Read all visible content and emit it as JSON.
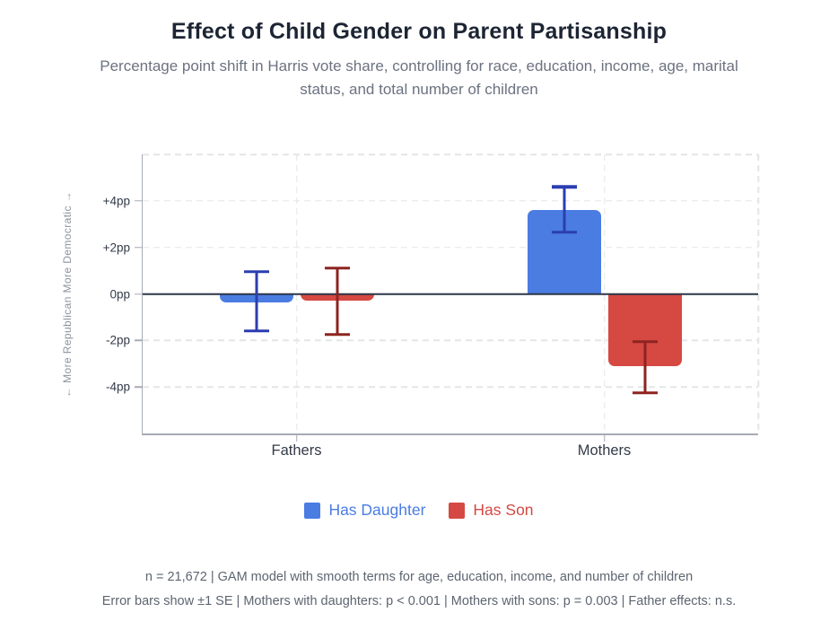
{
  "header": {
    "title": "Effect of Child Gender on Parent Partisanship",
    "subtitle_line1": "Percentage point shift in Harris vote share, controlling for race, education, income, age, marital",
    "subtitle_line2": "status, and total number of children"
  },
  "chart_data": {
    "type": "bar",
    "title": "Effect of Child Gender on Parent Partisanship",
    "categories": [
      "Fathers",
      "Mothers"
    ],
    "series": [
      {
        "name": "Has Daughter",
        "color": "#4a7ce2",
        "error_color": "#2b3eb0",
        "values": [
          -0.35,
          3.6
        ],
        "error_high": [
          0.95,
          4.6
        ],
        "error_low": [
          -1.6,
          2.65
        ]
      },
      {
        "name": "Has Son",
        "color": "#d54942",
        "error_color": "#8e2420",
        "values": [
          -0.3,
          -3.1
        ],
        "error_high": [
          1.1,
          -2.05
        ],
        "error_low": [
          -1.75,
          -4.25
        ]
      }
    ],
    "ylabel": "← More Republican More Democratic →",
    "yticks": [
      {
        "value": 4,
        "label": "+4pp"
      },
      {
        "value": 2,
        "label": "+2pp"
      },
      {
        "value": 0,
        "label": "0pp"
      },
      {
        "value": -2,
        "label": "-2pp"
      },
      {
        "value": -4,
        "label": "-4pp"
      }
    ],
    "ygridlines": [
      6,
      4,
      2,
      -2,
      -4
    ],
    "ylim": [
      -6,
      6
    ],
    "grid": true,
    "legend_position": "bottom"
  },
  "footer": {
    "line1": "n = 21,672 | GAM model with smooth terms for age, education, income, and number of children",
    "line2": "Error bars show ±1 SE | Mothers with daughters: p < 0.001 | Mothers with sons: p = 0.003 | Father effects: n.s."
  }
}
